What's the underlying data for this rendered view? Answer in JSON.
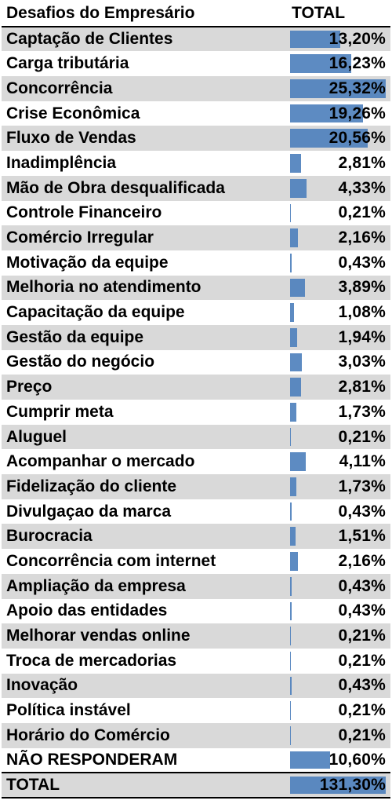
{
  "header": {
    "col1": "Desafios do Empresário",
    "col2": "TOTAL"
  },
  "colors": {
    "bar": "#4f81bd",
    "shade": "#d9d9d9"
  },
  "chart_data": {
    "type": "table",
    "columns": [
      "Desafios do Empresário",
      "TOTAL"
    ],
    "bar_scale_max": 25.32,
    "rows": [
      {
        "label": "Captação de Clientes",
        "value": 13.2,
        "display": "13,20%",
        "shaded": true
      },
      {
        "label": "Carga tributária",
        "value": 16.23,
        "display": "16,23%",
        "shaded": false
      },
      {
        "label": "Concorrência",
        "value": 25.32,
        "display": "25,32%",
        "shaded": true
      },
      {
        "label": "Crise Econômica",
        "value": 19.26,
        "display": "19,26%",
        "shaded": false
      },
      {
        "label": "Fluxo de Vendas",
        "value": 20.56,
        "display": "20,56%",
        "shaded": true
      },
      {
        "label": "Inadimplência",
        "value": 2.81,
        "display": "2,81%",
        "shaded": false
      },
      {
        "label": "Mão de Obra desqualificada",
        "value": 4.33,
        "display": "4,33%",
        "shaded": true
      },
      {
        "label": "Controle Financeiro",
        "value": 0.21,
        "display": "0,21%",
        "shaded": false
      },
      {
        "label": "Comércio Irregular",
        "value": 2.16,
        "display": "2,16%",
        "shaded": true
      },
      {
        "label": "Motivação da equipe",
        "value": 0.43,
        "display": "0,43%",
        "shaded": false
      },
      {
        "label": "Melhoria no atendimento",
        "value": 3.89,
        "display": "3,89%",
        "shaded": true
      },
      {
        "label": "Capacitação da equipe",
        "value": 1.08,
        "display": "1,08%",
        "shaded": false
      },
      {
        "label": "Gestão da equipe",
        "value": 1.94,
        "display": "1,94%",
        "shaded": true
      },
      {
        "label": "Gestão do negócio",
        "value": 3.03,
        "display": "3,03%",
        "shaded": false
      },
      {
        "label": "Preço",
        "value": 2.81,
        "display": "2,81%",
        "shaded": true
      },
      {
        "label": "Cumprir meta",
        "value": 1.73,
        "display": "1,73%",
        "shaded": false
      },
      {
        "label": "Aluguel",
        "value": 0.21,
        "display": "0,21%",
        "shaded": true
      },
      {
        "label": "Acompanhar o mercado",
        "value": 4.11,
        "display": "4,11%",
        "shaded": false
      },
      {
        "label": "Fidelização do cliente",
        "value": 1.73,
        "display": "1,73%",
        "shaded": true
      },
      {
        "label": "Divulgaçao da marca",
        "value": 0.43,
        "display": "0,43%",
        "shaded": false
      },
      {
        "label": "Burocracia",
        "value": 1.51,
        "display": "1,51%",
        "shaded": true
      },
      {
        "label": "Concorrência com internet",
        "value": 2.16,
        "display": "2,16%",
        "shaded": false
      },
      {
        "label": "Ampliação da empresa",
        "value": 0.43,
        "display": "0,43%",
        "shaded": true
      },
      {
        "label": "Apoio das entidades",
        "value": 0.43,
        "display": "0,43%",
        "shaded": false
      },
      {
        "label": "Melhorar vendas online",
        "value": 0.21,
        "display": "0,21%",
        "shaded": true
      },
      {
        "label": "Troca de mercadorias",
        "value": 0.21,
        "display": "0,21%",
        "shaded": false
      },
      {
        "label": "Inovação",
        "value": 0.43,
        "display": "0,43%",
        "shaded": true
      },
      {
        "label": "Política instável",
        "value": 0.21,
        "display": "0,21%",
        "shaded": false
      },
      {
        "label": "Horário do Comércio",
        "value": 0.21,
        "display": "0,21%",
        "shaded": true
      },
      {
        "label": "NÃO RESPONDERAM",
        "value": 10.6,
        "display": "10,60%",
        "shaded": false
      },
      {
        "label": "TOTAL",
        "value": 131.3,
        "display": "131,30%",
        "shaded": true,
        "total": true
      }
    ]
  }
}
